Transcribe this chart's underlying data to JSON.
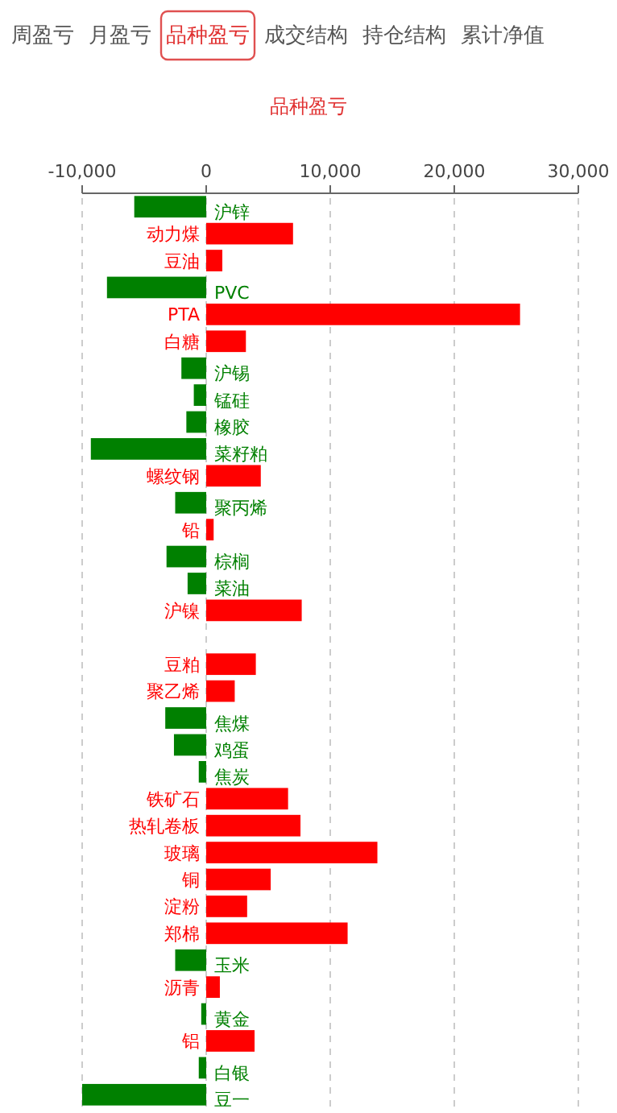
{
  "chart_data": {
    "type": "bar",
    "orientation": "horizontal",
    "title": "品种盈亏",
    "annotations": [
      "周盈亏",
      "月盈亏",
      "品种盈亏",
      "成交结构",
      "持仓结构",
      "累计净值"
    ],
    "categories": [
      "沪锌",
      "动力煤",
      "豆油",
      "PVC",
      "PTA",
      "白糖",
      "沪锡",
      "锰硅",
      "橡胶",
      "菜籽粕",
      "螺纹钢",
      "聚丙烯",
      "铅",
      "棕榈",
      "菜油",
      "沪镍",
      null,
      "豆粕",
      "聚乙烯",
      "焦煤",
      "鸡蛋",
      "焦炭",
      "铁矿石",
      "热轧卷板",
      "玻璃",
      "铜",
      "淀粉",
      "郑棉",
      "玉米",
      "沥青",
      "黄金",
      "铝",
      "白银",
      "豆一"
    ],
    "values": [
      -5800,
      7000,
      1300,
      -8000,
      25300,
      3200,
      -2000,
      -1000,
      -1600,
      -9300,
      4400,
      -2500,
      600,
      -3200,
      -1500,
      7700,
      null,
      4000,
      2300,
      -3300,
      -2600,
      -600,
      6600,
      7600,
      13800,
      5200,
      3300,
      11400,
      -2500,
      1100,
      -400,
      3900,
      -600,
      -10000
    ],
    "colors": [
      "#008000",
      "#ff0000",
      "#ff0000",
      "#008000",
      "#ff0000",
      "#ff0000",
      "#008000",
      "#008000",
      "#008000",
      "#008000",
      "#ff0000",
      "#008000",
      "#ff0000",
      "#008000",
      "#008000",
      "#ff0000",
      null,
      "#ff0000",
      "#ff0000",
      "#008000",
      "#008000",
      "#008000",
      "#ff0000",
      "#ff0000",
      "#ff0000",
      "#ff0000",
      "#ff0000",
      "#ff0000",
      "#008000",
      "#ff0000",
      "#008000",
      "#ff0000",
      "#008000",
      "#008000"
    ],
    "xlim": [
      -10000,
      30000
    ],
    "xticks": [
      {
        "value": -10000,
        "label": "-10,000"
      },
      0,
      {
        "value": 10000,
        "label": "10,000"
      },
      {
        "value": 20000,
        "label": "20,000"
      },
      {
        "value": 30000,
        "label": "30,000"
      }
    ],
    "grid": "x"
  }
}
